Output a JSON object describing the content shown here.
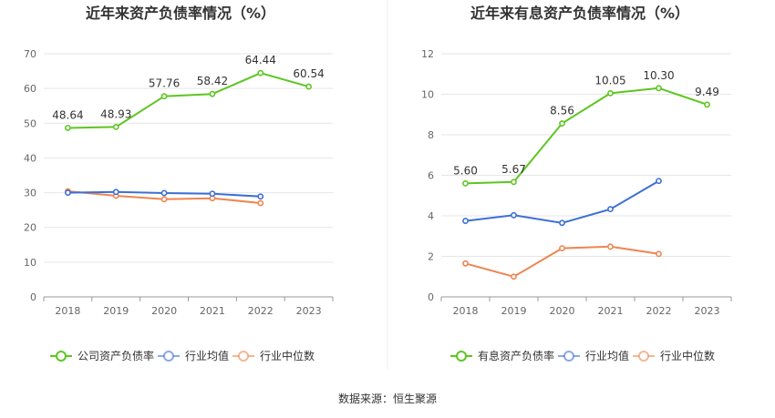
{
  "source_label": "数据来源：恒生聚源",
  "chart_data": [
    {
      "type": "line",
      "title": "近年来资产负债率情况（%）",
      "categories": [
        "2018",
        "2019",
        "2020",
        "2021",
        "2022",
        "2023"
      ],
      "ylim": [
        0,
        70
      ],
      "yticks": [
        0,
        10,
        20,
        30,
        40,
        50,
        60,
        70
      ],
      "grid": true,
      "legend_position": "bottom",
      "series": [
        {
          "name": "公司资产负债率",
          "color": "#5dc621",
          "values": [
            48.64,
            48.93,
            57.76,
            58.42,
            64.44,
            60.54
          ],
          "show_labels": true
        },
        {
          "name": "行业均值",
          "color": "#3d6fd6",
          "values": [
            30.0,
            30.2,
            29.9,
            29.7,
            28.9,
            null
          ],
          "show_labels": false
        },
        {
          "name": "行业中位数",
          "color": "#ee8550",
          "values": [
            30.4,
            29.1,
            28.1,
            28.4,
            27.0,
            null
          ],
          "show_labels": false
        }
      ]
    },
    {
      "type": "line",
      "title": "近年来有息资产负债率情况（%）",
      "categories": [
        "2018",
        "2019",
        "2020",
        "2021",
        "2022",
        "2023"
      ],
      "ylim": [
        0,
        12
      ],
      "yticks": [
        0,
        2,
        4,
        6,
        8,
        10,
        12
      ],
      "grid": true,
      "legend_position": "bottom",
      "series": [
        {
          "name": "有息资产负债率",
          "color": "#5dc621",
          "values": [
            5.6,
            5.67,
            8.56,
            10.05,
            10.3,
            9.49
          ],
          "show_labels": true
        },
        {
          "name": "行业均值",
          "color": "#3d6fd6",
          "values": [
            3.75,
            4.03,
            3.65,
            4.33,
            5.72,
            null
          ],
          "show_labels": false
        },
        {
          "name": "行业中位数",
          "color": "#ee8550",
          "values": [
            1.65,
            1.0,
            2.4,
            2.48,
            2.12,
            null
          ],
          "show_labels": false
        }
      ]
    }
  ]
}
